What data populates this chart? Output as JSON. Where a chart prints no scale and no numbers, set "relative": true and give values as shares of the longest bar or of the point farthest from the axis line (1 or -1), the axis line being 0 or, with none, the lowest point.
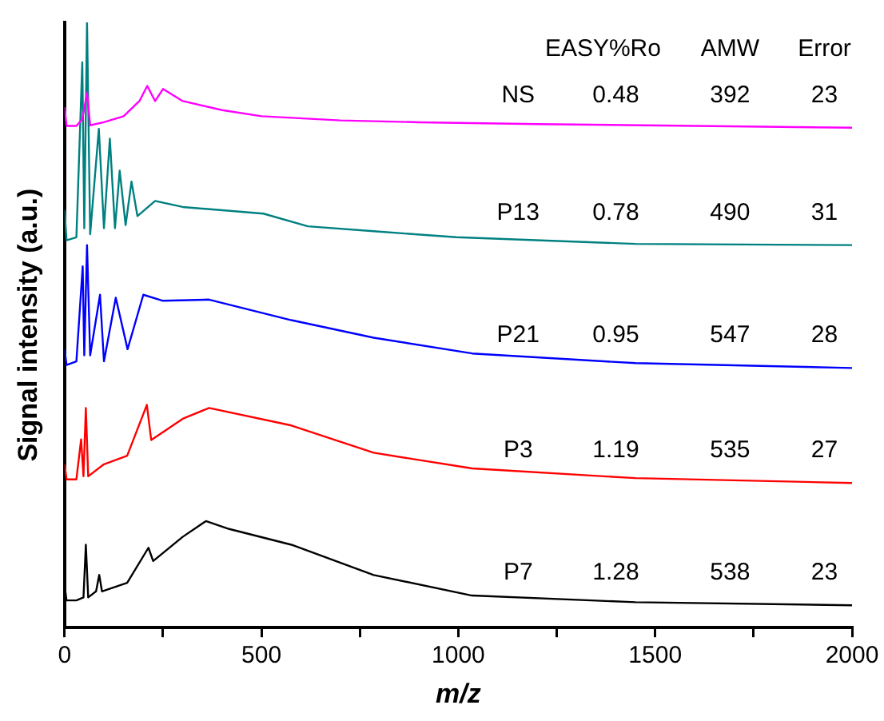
{
  "chart_data": {
    "type": "line",
    "relative": true,
    "xlabel": "m/z",
    "ylabel": "Signal intensity (a.u.)",
    "xlim": [
      0,
      2000
    ],
    "xticks": [
      0,
      {
        "value": 250,
        "label": null
      },
      500,
      {
        "value": 750,
        "label": null
      },
      1000,
      {
        "value": 1250,
        "label": null
      },
      1500,
      {
        "value": 1750,
        "label": null
      },
      2000
    ],
    "series": [
      {
        "name": "NS",
        "color": "#ff00ff",
        "x": [
          0,
          5,
          30,
          45,
          57,
          65,
          100,
          150,
          190,
          210,
          230,
          250,
          300,
          400,
          500,
          700,
          900,
          1200,
          1600,
          2000
        ],
        "values": [
          0.86,
          0.829,
          0.829,
          0.84,
          0.884,
          0.83,
          0.835,
          0.845,
          0.87,
          0.895,
          0.87,
          0.89,
          0.87,
          0.855,
          0.845,
          0.838,
          0.835,
          0.832,
          0.829,
          0.826
        ]
      },
      {
        "name": "P13",
        "color": "#008080",
        "x": [
          0,
          5,
          30,
          45,
          50,
          57,
          65,
          87,
          100,
          115,
          128,
          140,
          155,
          170,
          185,
          230,
          300,
          505,
          618,
          785,
          995,
          1450,
          2000
        ],
        "values": [
          0.69,
          0.64,
          0.645,
          0.934,
          0.66,
          1.0,
          0.65,
          0.824,
          0.66,
          0.808,
          0.66,
          0.755,
          0.665,
          0.737,
          0.68,
          0.705,
          0.695,
          0.684,
          0.663,
          0.655,
          0.645,
          0.634,
          0.632
        ]
      },
      {
        "name": "P21",
        "color": "#0000ff",
        "x": [
          0,
          5,
          30,
          46,
          50,
          57,
          65,
          90,
          100,
          130,
          160,
          200,
          250,
          367,
          576,
          785,
          1035,
          1450,
          2000
        ],
        "values": [
          0.46,
          0.434,
          0.44,
          0.597,
          0.45,
          0.632,
          0.45,
          0.55,
          0.44,
          0.545,
          0.46,
          0.55,
          0.54,
          0.542,
          0.508,
          0.479,
          0.453,
          0.437,
          0.429
        ]
      },
      {
        "name": "P3",
        "color": "#ff0000",
        "x": [
          0,
          5,
          30,
          42,
          48,
          54,
          60,
          100,
          159,
          209,
          220,
          300,
          367,
          576,
          785,
          1035,
          1450,
          2000
        ],
        "values": [
          0.27,
          0.245,
          0.245,
          0.311,
          0.25,
          0.363,
          0.25,
          0.27,
          0.284,
          0.368,
          0.31,
          0.345,
          0.363,
          0.334,
          0.289,
          0.263,
          0.247,
          0.239
        ]
      },
      {
        "name": "P7",
        "color": "#000000",
        "x": [
          0,
          5,
          30,
          48,
          54,
          60,
          80,
          88,
          95,
          159,
          213,
          225,
          300,
          359,
          418,
          576,
          785,
          1035,
          1450,
          2000
        ],
        "values": [
          0.07,
          0.045,
          0.045,
          0.05,
          0.137,
          0.05,
          0.06,
          0.087,
          0.06,
          0.074,
          0.132,
          0.11,
          0.15,
          0.176,
          0.163,
          0.137,
          0.087,
          0.053,
          0.042,
          0.037
        ]
      }
    ],
    "annotations": [
      "EASY%Ro",
      "AMW",
      "Error",
      "0.48",
      "392",
      "23",
      "0.78",
      "490",
      "31",
      "0.95",
      "547",
      "28",
      "1.19",
      "535",
      "27",
      "1.28",
      "538",
      "23"
    ]
  }
}
